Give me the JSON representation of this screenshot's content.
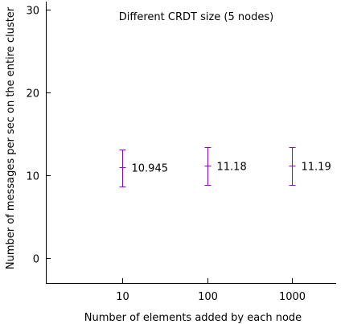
{
  "chart_data": {
    "type": "scatter",
    "title": "Different CRDT size (5 nodes)",
    "xlabel": "Number of elements added by each node",
    "ylabel": "Number of messages per sec on the entire cluster",
    "categories": [
      "10",
      "100",
      "1000"
    ],
    "series": [
      {
        "values": [
          10.945,
          11.18,
          11.19
        ],
        "error_low": [
          8.7,
          8.9,
          8.9
        ],
        "error_high": [
          13.1,
          13.4,
          13.4
        ],
        "labels": [
          "10.945",
          "11.18",
          "11.19"
        ]
      }
    ],
    "ylim": [
      -3,
      31
    ],
    "yticks": [
      0,
      10,
      20,
      30
    ],
    "ytick_labels": [
      "0",
      "10",
      "20",
      "30"
    ],
    "grid": false,
    "series_color": "#9400d3",
    "axis_color": "#000000"
  }
}
